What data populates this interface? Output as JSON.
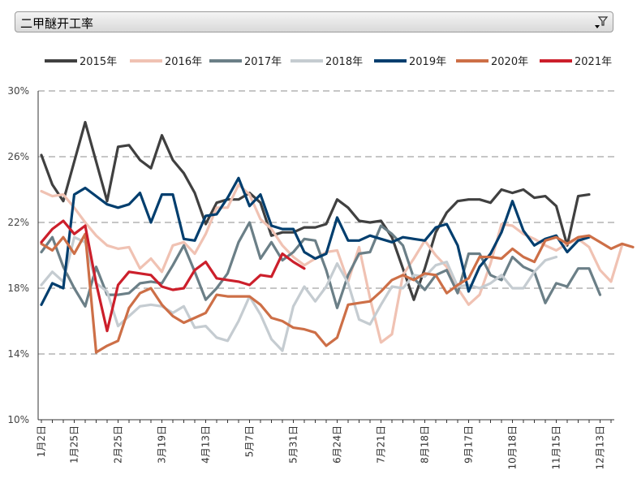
{
  "field_button": {
    "label": "二甲醚开工率",
    "icon": "filter-dropdown-icon"
  },
  "chart_data": {
    "type": "line",
    "title": "二甲醚开工率",
    "xlabel": "",
    "ylabel": "",
    "ylim": [
      10,
      30
    ],
    "yticks": [
      "10%",
      "14%",
      "18%",
      "22%",
      "26%",
      "30%"
    ],
    "x_range": [
      1,
      53
    ],
    "categories_shown": [
      {
        "week": 1,
        "label": "1月2日"
      },
      {
        "week": 4,
        "label": "1月25日"
      },
      {
        "week": 8,
        "label": "2月25日"
      },
      {
        "week": 12,
        "label": "3月19日"
      },
      {
        "week": 16,
        "label": "4月13日"
      },
      {
        "week": 20,
        "label": "5月7日"
      },
      {
        "week": 24,
        "label": "5月31日"
      },
      {
        "week": 28,
        "label": "6月24日"
      },
      {
        "week": 32,
        "label": "7月21日"
      },
      {
        "week": 36,
        "label": "8月18日"
      },
      {
        "week": 40,
        "label": "9月17日"
      },
      {
        "week": 44,
        "label": "10月18日"
      },
      {
        "week": 48,
        "label": "11月15日"
      },
      {
        "week": 52,
        "label": "12月13日"
      }
    ],
    "legend_position": "top",
    "series": [
      {
        "name": "2015年",
        "color": "#404040",
        "values": [
          26.1,
          24.3,
          23.3,
          25.7,
          28.1,
          25.7,
          23.3,
          26.6,
          26.7,
          25.8,
          25.3,
          27.3,
          25.8,
          25.0,
          23.8,
          21.9,
          23.2,
          23.4,
          23.4,
          23.8,
          23.2,
          21.2,
          21.4,
          21.4,
          21.7,
          21.7,
          21.9,
          23.4,
          22.9,
          22.1,
          22.0,
          22.1,
          21.1,
          19.2,
          17.3,
          19.2,
          21.4,
          22.6,
          23.3,
          23.4,
          23.4,
          23.2,
          24.0,
          23.8,
          24.0,
          23.5,
          23.6,
          23.0,
          20.6,
          23.6,
          23.7
        ]
      },
      {
        "name": "2016年",
        "color": "#f0c2b3",
        "values": [
          23.9,
          23.6,
          23.7,
          22.9,
          22.0,
          21.2,
          20.6,
          20.4,
          20.5,
          19.2,
          19.8,
          19.0,
          20.6,
          20.8,
          20.1,
          21.3,
          22.9,
          22.9,
          24.3,
          23.7,
          22.2,
          21.6,
          20.6,
          19.9,
          19.4,
          19.8,
          20.2,
          20.3,
          18.4,
          20.5,
          17.4,
          14.7,
          15.2,
          18.8,
          19.8,
          20.9,
          20.0,
          19.3,
          18.0,
          17.0,
          17.6,
          19.5,
          21.9,
          21.8,
          21.3,
          21.0,
          20.6,
          20.3,
          20.7,
          21.0,
          20.5,
          19.1,
          18.4,
          20.6
        ]
      },
      {
        "name": "2017年",
        "color": "#6b7f87",
        "values": [
          20.2,
          21.1,
          19.3,
          18.0,
          16.9,
          19.3,
          17.6,
          17.6,
          17.7,
          18.3,
          18.4,
          18.3,
          19.4,
          20.6,
          19.0,
          17.3,
          18.0,
          18.9,
          20.8,
          22.0,
          19.8,
          20.8,
          19.7,
          20.2,
          21.0,
          20.9,
          19.1,
          16.8,
          18.8,
          20.1,
          20.2,
          21.8,
          21.3,
          20.6,
          18.6,
          17.9,
          18.8,
          19.1,
          17.7,
          20.1,
          20.1,
          18.8,
          18.5,
          19.9,
          19.3,
          19.0,
          17.1,
          18.3,
          18.1,
          19.2,
          19.2,
          17.6
        ]
      },
      {
        "name": "2018年",
        "color": "#c5ccd1",
        "values": [
          18.2,
          19.0,
          18.4,
          21.1,
          20.8,
          18.3,
          17.8,
          15.7,
          16.3,
          16.9,
          17.0,
          16.9,
          16.5,
          16.9,
          15.6,
          15.7,
          15.0,
          14.8,
          16.0,
          17.5,
          16.4,
          14.9,
          14.2,
          16.9,
          18.1,
          17.2,
          18.1,
          19.5,
          18.3,
          16.1,
          15.8,
          17.0,
          18.1,
          18.0,
          18.8,
          18.7,
          19.4,
          19.6,
          18.1,
          18.2,
          18.0,
          18.3,
          18.8,
          18.0,
          18.0,
          19.0,
          19.7,
          19.9
        ]
      },
      {
        "name": "2019年",
        "color": "#003e6e",
        "values": [
          17.0,
          18.3,
          18.0,
          23.7,
          24.1,
          23.6,
          23.1,
          22.9,
          23.1,
          23.8,
          22.0,
          23.7,
          23.7,
          21.0,
          20.9,
          22.4,
          22.5,
          23.5,
          24.7,
          23.0,
          23.7,
          21.8,
          21.6,
          21.6,
          20.2,
          19.8,
          20.1,
          22.3,
          20.9,
          20.9,
          21.2,
          21.0,
          20.8,
          21.1,
          21.0,
          20.9,
          21.7,
          21.9,
          20.6,
          17.8,
          19.3,
          20.1,
          21.4,
          23.3,
          21.5,
          20.6,
          21.0,
          21.2,
          20.2,
          20.9,
          21.1
        ]
      },
      {
        "name": "2020年",
        "color": "#cd6f47",
        "values": [
          20.7,
          20.3,
          21.1,
          20.1,
          21.3,
          14.1,
          14.5,
          14.8,
          16.8,
          17.7,
          18.0,
          17.0,
          16.3,
          15.9,
          16.2,
          16.5,
          17.6,
          17.5,
          17.5,
          17.5,
          17.0,
          16.2,
          16.0,
          15.6,
          15.5,
          15.3,
          14.5,
          15.0,
          17.0,
          17.1,
          17.2,
          17.8,
          18.5,
          18.8,
          18.5,
          18.9,
          18.8,
          17.7,
          18.2,
          18.6,
          19.9,
          19.9,
          19.8,
          20.4,
          19.9,
          19.6,
          20.9,
          21.1,
          20.7,
          21.1,
          21.2,
          20.8,
          20.4,
          20.7,
          20.5
        ]
      },
      {
        "name": "2021年",
        "color": "#cc1f2b",
        "values": [
          20.8,
          21.6,
          22.1,
          21.3,
          21.8,
          18.3,
          15.4,
          18.2,
          19.0,
          18.9,
          18.8,
          18.1,
          17.9,
          18.0,
          19.1,
          19.6,
          18.6,
          18.5,
          18.4,
          18.2,
          18.8,
          18.7,
          20.1,
          19.6,
          19.2
        ]
      }
    ]
  }
}
